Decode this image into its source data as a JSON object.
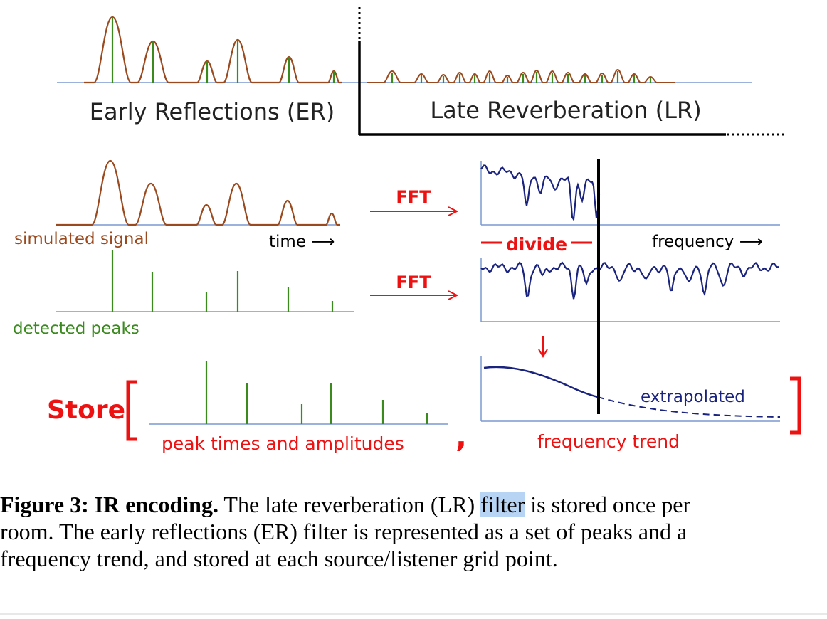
{
  "figure": {
    "top": {
      "er_label": "Early Reflections (ER)",
      "lr_label": "Late Reverberation (LR)"
    },
    "rows": {
      "simulated_label": "simulated signal",
      "time_label": "time ⟶",
      "detected_label": "detected peaks",
      "fft1": "FFT",
      "fft2": "FFT",
      "divide_label": "divide",
      "frequency_label": "frequency ⟶"
    },
    "store": {
      "store_label": "Store",
      "peaks_label": "peak times and amplitudes",
      "comma": ",",
      "extrapolated_label": "extrapolated",
      "trend_label": "frequency trend"
    },
    "colors": {
      "brown": "#9a4a1e",
      "green": "#3a8a1e",
      "red": "#ee1111",
      "navy": "#1a237e",
      "axis_blue": "#7a9ad0"
    }
  },
  "caption": {
    "label": "Figure 3: IR encoding.",
    "text_before": " The late reverberation (LR) ",
    "highlight": "filter",
    "text_line1_end": " is stored once per",
    "line2": "room. The early reflections (ER) filter is represented as a set of peaks and a",
    "line3": "frequency trend, and stored at each source/listener grid point."
  }
}
